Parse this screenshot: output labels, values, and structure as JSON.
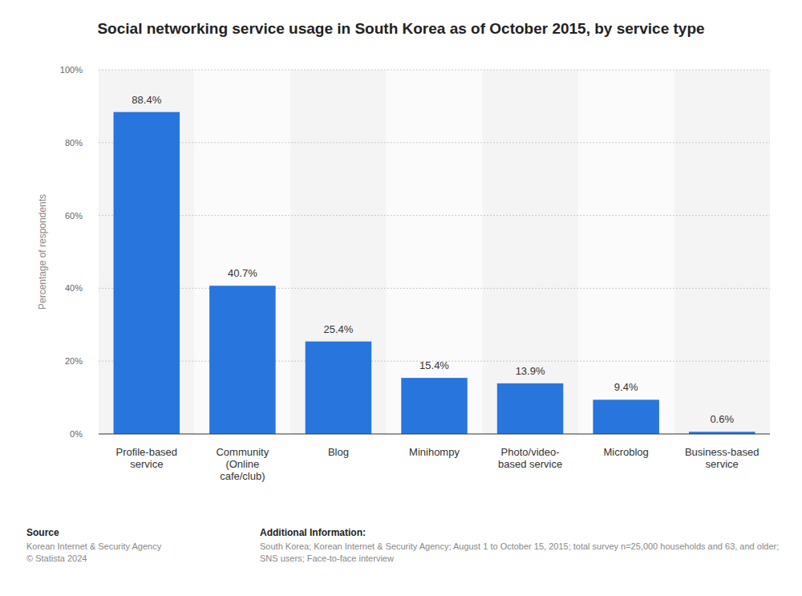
{
  "chart_data": {
    "type": "bar",
    "title": "Social networking service usage in South Korea as of October 2015, by service type",
    "y_label": "Percentage of respondents",
    "categories": [
      "Profile-based service",
      "Community (Online cafe/club)",
      "Blog",
      "Minihompy",
      "Photo/video-based service",
      "Microblog",
      "Business-based service"
    ],
    "values": [
      88.4,
      40.7,
      25.4,
      15.4,
      13.9,
      9.4,
      0.6
    ],
    "value_labels": [
      "88.4%",
      "40.7%",
      "25.4%",
      "15.4%",
      "13.9%",
      "9.4%",
      "0.6%"
    ],
    "color": "#2876dd",
    "ylim": [
      0,
      100
    ],
    "yticks": [
      {
        "value": 0,
        "label": "0%"
      },
      {
        "value": 20,
        "label": "20%"
      },
      {
        "value": 40,
        "label": "40%"
      },
      {
        "value": 60,
        "label": "60%"
      },
      {
        "value": 80,
        "label": "80%"
      },
      {
        "value": 100,
        "label": "100%"
      }
    ],
    "grid": true,
    "data_labels": true
  },
  "footer": {
    "source_label": "Source",
    "source": "Korean Internet & Security Agency",
    "copyright": "© Statista 2024",
    "info_label": "Additional Information:",
    "info": "South Korea; Korean Internet & Security Agency; August 1 to October 15, 2015; total survey n=25,000 households and 63, and older; SNS users; Face-to-face interview"
  }
}
